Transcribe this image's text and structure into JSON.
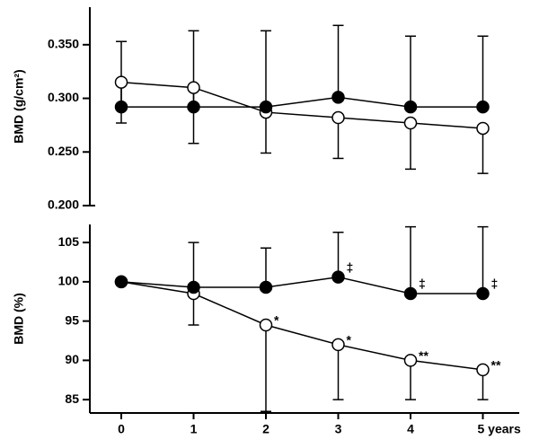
{
  "chart_data": [
    {
      "type": "line",
      "ylabel": "BMD (g/cm²)",
      "ylim": [
        0.2,
        0.385
      ],
      "yticks": [
        {
          "value": 0.2,
          "label": "0.200"
        },
        {
          "value": 0.25,
          "label": "0.250"
        },
        {
          "value": 0.3,
          "label": "0.300"
        },
        {
          "value": 0.35,
          "label": "0.350"
        }
      ],
      "series": [
        {
          "marker": "open",
          "color": "#000000",
          "values": [
            0.315,
            0.31,
            0.287,
            0.282,
            0.277,
            0.272
          ],
          "error_low": [
            0.038,
            0.052,
            0.038,
            0.038,
            0.043,
            0.042
          ]
        },
        {
          "marker": "filled",
          "color": "#000000",
          "values": [
            0.292,
            0.292,
            0.292,
            0.301,
            0.292,
            0.292
          ],
          "error_high": [
            0.061,
            0.071,
            0.071,
            0.067,
            0.066,
            0.066
          ]
        }
      ]
    },
    {
      "type": "line",
      "ylabel": "BMD (%)",
      "categories": [
        "0",
        "1",
        "2",
        "3",
        "4",
        "5 years"
      ],
      "ylim": [
        83.3,
        107.3
      ],
      "yticks": [
        85,
        90,
        95,
        100,
        105
      ],
      "series": [
        {
          "marker": "open",
          "color": "#000000",
          "values": [
            100,
            98.5,
            94.5,
            92,
            90,
            88.8
          ],
          "error_low": [
            null,
            4,
            11,
            7,
            5,
            3.8
          ],
          "annotations": [
            null,
            null,
            "*",
            "*",
            "**",
            "**"
          ]
        },
        {
          "marker": "filled",
          "color": "#000000",
          "values": [
            100,
            99.3,
            99.3,
            100.6,
            98.5,
            98.5
          ],
          "error_high": [
            null,
            5.7,
            5,
            5.7,
            8.5,
            8.5
          ],
          "annotations": [
            null,
            null,
            null,
            "‡",
            "‡",
            "‡"
          ]
        }
      ]
    }
  ]
}
